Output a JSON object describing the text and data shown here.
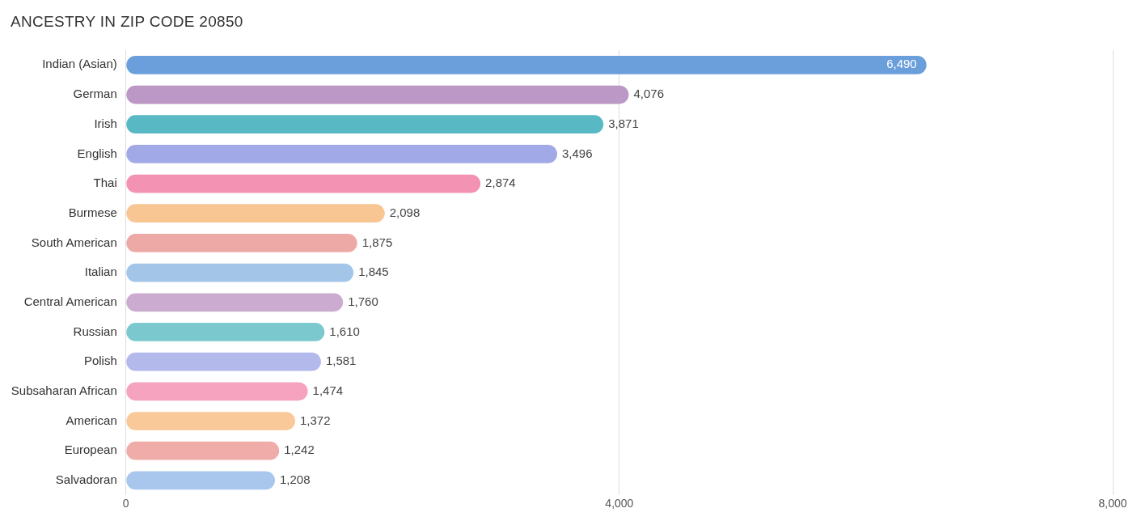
{
  "chart_data": {
    "type": "bar",
    "orientation": "horizontal",
    "title": "ANCESTRY IN ZIP CODE 20850",
    "categories": [
      "Indian (Asian)",
      "German",
      "Irish",
      "English",
      "Thai",
      "Burmese",
      "South American",
      "Italian",
      "Central American",
      "Russian",
      "Polish",
      "Subsaharan African",
      "American",
      "European",
      "Salvadoran"
    ],
    "values": [
      6490,
      4076,
      3871,
      3496,
      2874,
      2098,
      1875,
      1845,
      1760,
      1610,
      1581,
      1474,
      1372,
      1242,
      1208
    ],
    "colors": [
      "#6a9fdc",
      "#bb98c6",
      "#58b9c4",
      "#a1a9e6",
      "#f392b3",
      "#f8c692",
      "#eda9a6",
      "#a3c5e8",
      "#cbacd0",
      "#7bc9cf",
      "#b4b9ec",
      "#f5a3be",
      "#f9c99a",
      "#efaca9",
      "#a9c7ec"
    ],
    "xlim": [
      0,
      8000
    ],
    "xticks": [
      {
        "value": 0,
        "label": "0"
      },
      {
        "value": 4000,
        "label": "4,000"
      },
      {
        "value": 8000,
        "label": "8,000"
      }
    ],
    "value_labels": [
      "6,490",
      "4,076",
      "3,871",
      "3,496",
      "2,874",
      "2,098",
      "1,875",
      "1,845",
      "1,760",
      "1,610",
      "1,581",
      "1,474",
      "1,372",
      "1,242",
      "1,208"
    ],
    "grid": "x",
    "legend": false
  }
}
